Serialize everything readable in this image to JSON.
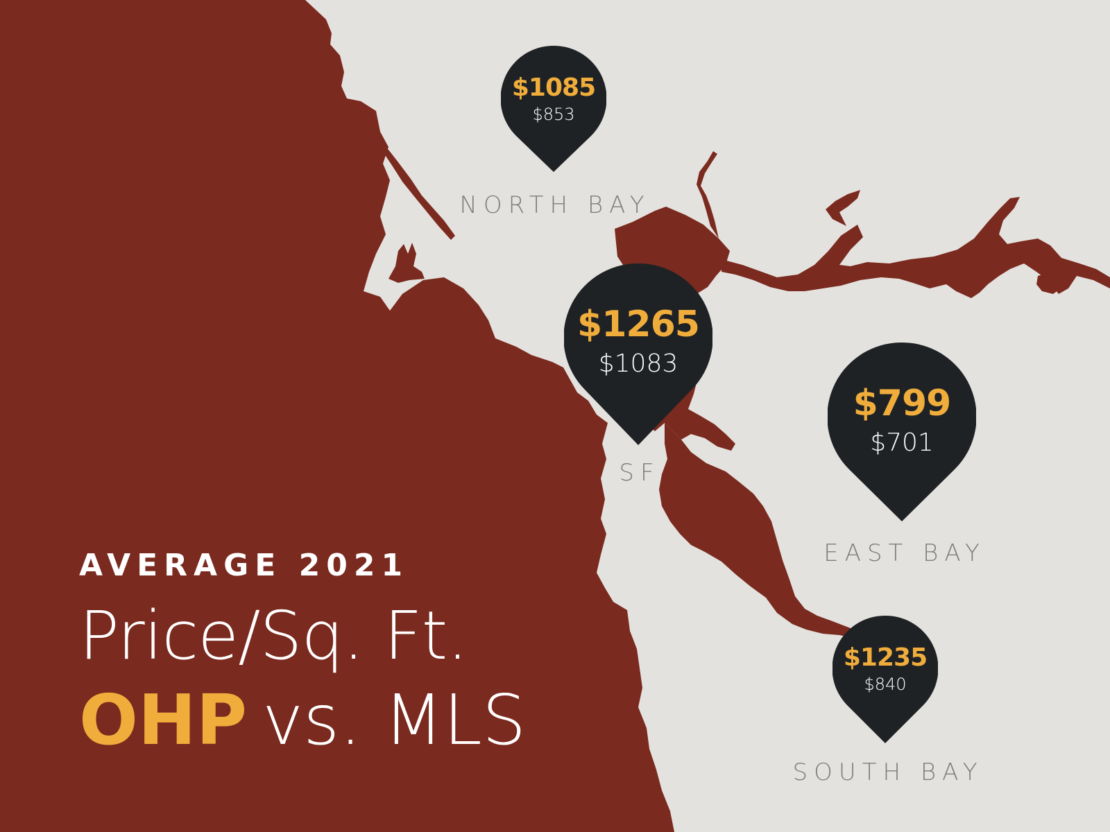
{
  "map": {
    "land_color": "#e4e2df",
    "water_color": "#7a2a1e",
    "pin_color": "#1f2225",
    "ohp_color": "#f0ad3c",
    "mls_color": "#ffffff",
    "label_color": "#7d7d7d",
    "regions": [
      {
        "id": "north-bay",
        "label": "NORTH BAY",
        "ohp": "$1085",
        "mls": "$853"
      },
      {
        "id": "sf",
        "label": "SF",
        "ohp": "$1265",
        "mls": "$1083"
      },
      {
        "id": "east-bay",
        "label": "EAST BAY",
        "ohp": "$799",
        "mls": "$701"
      },
      {
        "id": "south-bay",
        "label": "SOUTH BAY",
        "ohp": "$1235",
        "mls": "$840"
      }
    ]
  },
  "headline": {
    "eyebrow": "AVERAGE 2021",
    "title": "Price/Sq. Ft.",
    "highlight": "OHP",
    "rest": "vs. MLS"
  }
}
